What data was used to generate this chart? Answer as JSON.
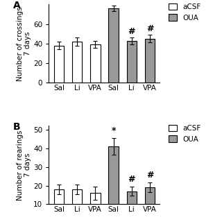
{
  "panel_A": {
    "title": "A",
    "ylabel": "Number of crossings\n7 days",
    "ylim": [
      0,
      80
    ],
    "yticks": [
      0,
      20,
      40,
      60
    ],
    "categories": [
      "Sal",
      "Li",
      "VPA",
      "Sal",
      "Li",
      "VPA"
    ],
    "values": [
      38,
      42,
      39,
      76,
      43,
      45
    ],
    "errors": [
      4,
      4,
      3.5,
      3,
      3.5,
      4
    ],
    "colors": [
      "white",
      "white",
      "white",
      "#999999",
      "#999999",
      "#999999"
    ],
    "annotations": [
      "",
      "",
      "",
      "",
      "#",
      "#"
    ],
    "legend_labels": [
      "aCSF",
      "OUA"
    ],
    "legend_colors": [
      "white",
      "#999999"
    ]
  },
  "panel_B": {
    "title": "B",
    "ylabel": "Number of rearings\n7 days",
    "ylim": [
      10,
      52
    ],
    "yticks": [
      10,
      20,
      30,
      40,
      50
    ],
    "categories": [
      "Sal",
      "Li",
      "VPA",
      "Sal",
      "Li",
      "VPA"
    ],
    "values": [
      18,
      18,
      16,
      41,
      17,
      19
    ],
    "errors": [
      2.5,
      2.5,
      3.5,
      4.5,
      2.5,
      2.5
    ],
    "colors": [
      "white",
      "white",
      "white",
      "#999999",
      "#999999",
      "#999999"
    ],
    "annotations": [
      "",
      "",
      "",
      "*",
      "#",
      "#"
    ],
    "legend_labels": [
      "aCSF",
      "OUA"
    ],
    "legend_colors": [
      "white",
      "#999999"
    ]
  },
  "bar_width": 0.55,
  "bar_edge_color": "black",
  "bar_edge_width": 0.8,
  "figure_bg": "white",
  "font_size": 7.5,
  "title_font_size": 10,
  "annot_font_size": 9
}
